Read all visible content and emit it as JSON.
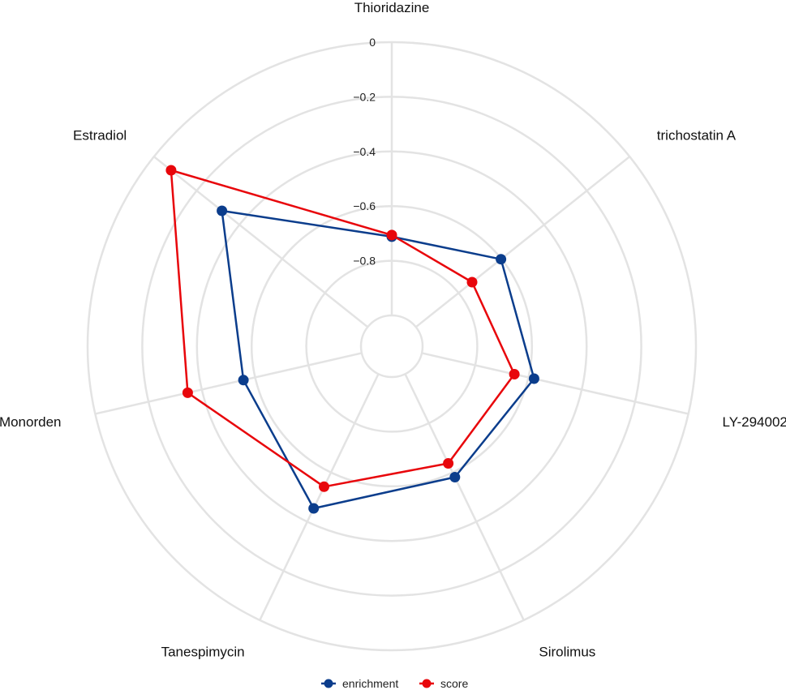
{
  "chart_data": {
    "type": "radar",
    "axes": [
      "Thioridazine",
      "trichostatin A",
      "LY-294002",
      "Sirolimus",
      "Tanespimycin",
      "Monorden",
      "Estradiol"
    ],
    "r_ticks": [
      0,
      -0.2,
      -0.4,
      -0.6,
      -0.8
    ],
    "r_tick_labels": [
      "0",
      "-0.2",
      "-0.4",
      "-0.6",
      "-0.8"
    ],
    "r_range": [
      -1.0,
      0.0
    ],
    "grid": true,
    "legend_position": "bottom",
    "series": [
      {
        "name": "enrichment",
        "color": "#0b3d8c",
        "values": [
          -0.712,
          -0.602,
          -0.579,
          -0.581,
          -0.454,
          -0.556,
          -0.318
        ]
      },
      {
        "name": "score",
        "color": "#e8060b",
        "values": [
          -0.706,
          -0.737,
          -0.653,
          -0.637,
          -0.542,
          -0.347,
          -0.08
        ]
      }
    ]
  }
}
